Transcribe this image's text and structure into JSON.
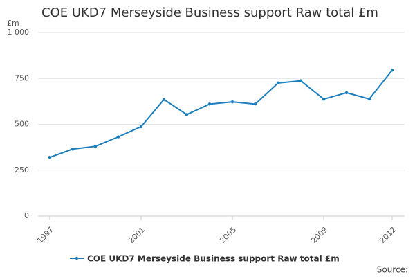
{
  "chart_data": {
    "type": "line",
    "title": "COE UKD7 Merseyside Business support Raw total £m",
    "y_label": "£m",
    "source": "Source:",
    "x": [
      1997,
      1998,
      1999,
      2000,
      2001,
      2002,
      2003,
      2004,
      2005,
      2006,
      2007,
      2008,
      2009,
      2010,
      2011,
      2012
    ],
    "series": [
      {
        "name": "COE UKD7 Merseyside Business support Raw total £m",
        "color": "#1b7dba",
        "values": [
          320,
          365,
          380,
          432,
          487,
          635,
          553,
          610,
          622,
          610,
          725,
          737,
          637,
          672,
          638,
          795
        ]
      }
    ],
    "xlim": [
      1997,
      2012
    ],
    "xticks": [
      1997,
      2001,
      2005,
      2009,
      2012
    ],
    "ylim": [
      0,
      1000
    ],
    "yticks": [
      0,
      250,
      500,
      750,
      {
        "value": 1000,
        "label": "1 000"
      }
    ],
    "grid": true
  }
}
